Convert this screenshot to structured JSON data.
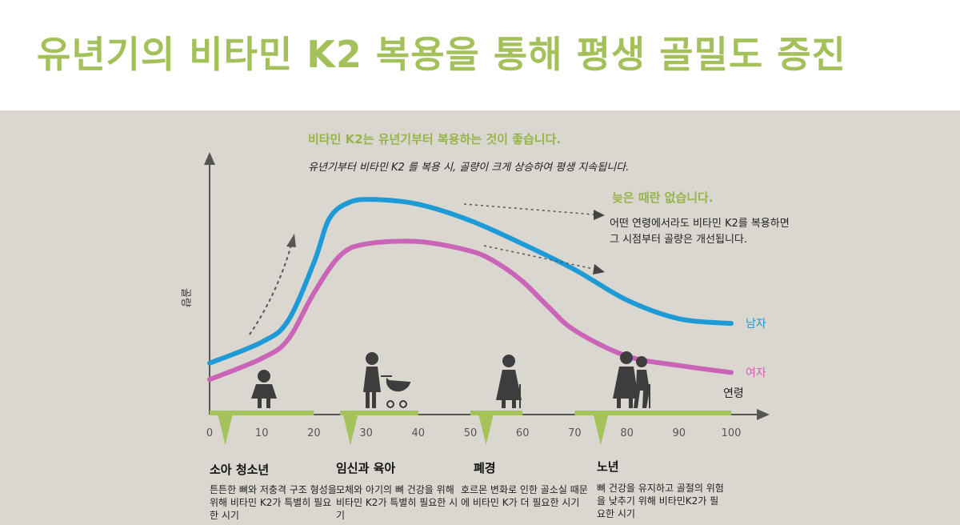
{
  "title": "유년기의 비타민 K2 복용을 통해 평생 골밀도 증진",
  "annotations": {
    "headline1": "비타민 K2는 유년기부터 복용하는 것이 좋습니다.",
    "line1": "유년기부터 비타민 K2 를 복용 시, 골량이 크게 상승하여 평생 지속됩니다.",
    "headline2": "늦은 때란 없습니다.",
    "line2a": "어떤 연령에서라도 비타민 K2를 복용하면",
    "line2b": "그 시점부터 골량은 개선됩니다."
  },
  "chart_data": {
    "type": "line",
    "ylabel": "골량",
    "xlabel": "연령",
    "xlim": [
      0,
      100
    ],
    "x_ticks": [
      "0",
      "10",
      "20",
      "30",
      "40",
      "50",
      "60",
      "70",
      "80",
      "90",
      "100"
    ],
    "series": [
      {
        "name": "남자",
        "color": "#1e9ad6",
        "x": [
          0,
          10,
          15,
          20,
          23,
          27,
          32,
          40,
          50,
          60,
          70,
          80,
          90,
          100
        ],
        "y": [
          22,
          31,
          40,
          65,
          84,
          91,
          92,
          90,
          83,
          73,
          62,
          49,
          41,
          39
        ]
      },
      {
        "name": "여자",
        "color": "#c964b7",
        "x": [
          0,
          10,
          15,
          20,
          25,
          30,
          40,
          50,
          55,
          60,
          65,
          70,
          80,
          90,
          100
        ],
        "y": [
          15,
          24,
          32,
          52,
          68,
          73,
          74,
          70,
          65,
          57,
          46,
          36,
          25,
          21,
          18
        ]
      }
    ]
  },
  "stages": [
    {
      "title": "소아 청소년",
      "desc": "튼튼한 뼈와 저충격 구조 형성을 위해 비타민 K2가 특별히 필요한 시기"
    },
    {
      "title": "임신과 육아",
      "desc": "모체와 아기의 뼈 건강을 위해 비타민 K2가 특별히 필요한 시기"
    },
    {
      "title": "폐경",
      "desc": "호르몬 변화로 인한 골소실 때문에 비타민 K가 더 필요한 시기"
    },
    {
      "title": "노년",
      "desc": "뼈 건강을 유지하고 골절의 위험을 낮추기 위해 비타민K2가 필요한 시기"
    }
  ],
  "colors": {
    "accent": "#a3c05b",
    "panel": "#dad6d0"
  }
}
